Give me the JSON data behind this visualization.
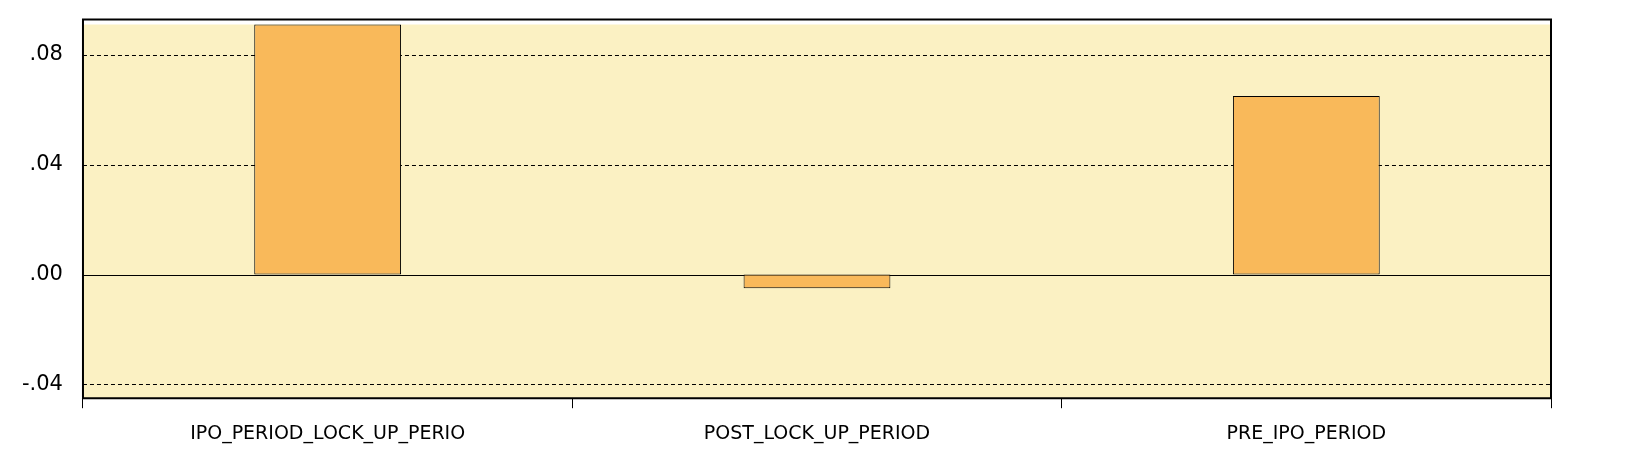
{
  "chart_data": {
    "type": "bar",
    "categories": [
      "IPO_PERIOD_LOCK_UP_PERIO",
      "POST_LOCK_UP_PERIOD",
      "PRE_IPO_PERIOD"
    ],
    "values": [
      0.091,
      -0.005,
      0.065
    ],
    "color": "#f9b95a",
    "ylim": [
      -0.045,
      0.091
    ],
    "yticks": [
      {
        "value": -0.04,
        "label": "-.04"
      },
      {
        "value": 0,
        "label": ".00"
      },
      {
        "value": 0.04,
        "label": ".04"
      },
      {
        "value": 0.08,
        "label": ".08"
      }
    ],
    "grid": "y",
    "legend": false
  }
}
